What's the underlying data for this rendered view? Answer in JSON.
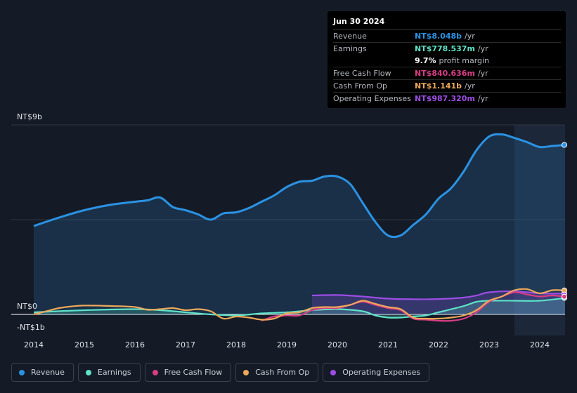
{
  "chart_data": {
    "type": "area",
    "x_range": [
      2014,
      2024.5
    ],
    "ylim": [
      -1,
      9
    ],
    "y_labels": [
      "NT$9b",
      "NT$0",
      "-NT$1b"
    ],
    "x_ticks": [
      "2014",
      "2015",
      "2016",
      "2017",
      "2018",
      "2019",
      "2020",
      "2021",
      "2022",
      "2023",
      "2024"
    ],
    "highlight_start": 2023.5,
    "series": [
      {
        "name": "Revenue",
        "color": "#2b92e3",
        "fill": true,
        "points": [
          [
            2014,
            4.2
          ],
          [
            2014.5,
            4.6
          ],
          [
            2015,
            4.95
          ],
          [
            2015.5,
            5.2
          ],
          [
            2016,
            5.35
          ],
          [
            2016.25,
            5.42
          ],
          [
            2016.5,
            5.55
          ],
          [
            2016.75,
            5.1
          ],
          [
            2017,
            4.95
          ],
          [
            2017.25,
            4.75
          ],
          [
            2017.5,
            4.5
          ],
          [
            2017.75,
            4.8
          ],
          [
            2018,
            4.85
          ],
          [
            2018.25,
            5.05
          ],
          [
            2018.5,
            5.35
          ],
          [
            2018.75,
            5.65
          ],
          [
            2019,
            6.05
          ],
          [
            2019.25,
            6.3
          ],
          [
            2019.5,
            6.35
          ],
          [
            2019.75,
            6.55
          ],
          [
            2020,
            6.55
          ],
          [
            2020.25,
            6.2
          ],
          [
            2020.5,
            5.3
          ],
          [
            2020.75,
            4.4
          ],
          [
            2021,
            3.75
          ],
          [
            2021.25,
            3.75
          ],
          [
            2021.5,
            4.25
          ],
          [
            2021.75,
            4.75
          ],
          [
            2022,
            5.5
          ],
          [
            2022.25,
            6.0
          ],
          [
            2022.5,
            6.8
          ],
          [
            2022.75,
            7.8
          ],
          [
            2023,
            8.45
          ],
          [
            2023.25,
            8.55
          ],
          [
            2023.5,
            8.38
          ],
          [
            2023.75,
            8.18
          ],
          [
            2024,
            7.95
          ],
          [
            2024.25,
            8.0
          ],
          [
            2024.5,
            8.05
          ]
        ]
      },
      {
        "name": "Earnings",
        "color": "#5ee2c8",
        "fill": true,
        "points": [
          [
            2014,
            0.1
          ],
          [
            2015,
            0.2
          ],
          [
            2016,
            0.25
          ],
          [
            2016.5,
            0.2
          ],
          [
            2017,
            0.1
          ],
          [
            2017.5,
            0.0
          ],
          [
            2018,
            -0.05
          ],
          [
            2018.5,
            0.05
          ],
          [
            2019,
            0.1
          ],
          [
            2019.5,
            0.2
          ],
          [
            2020,
            0.25
          ],
          [
            2020.5,
            0.15
          ],
          [
            2020.75,
            -0.05
          ],
          [
            2021,
            -0.15
          ],
          [
            2021.25,
            -0.15
          ],
          [
            2021.5,
            -0.1
          ],
          [
            2021.75,
            -0.05
          ],
          [
            2022,
            0.1
          ],
          [
            2022.5,
            0.4
          ],
          [
            2022.75,
            0.6
          ],
          [
            2023,
            0.65
          ],
          [
            2023.5,
            0.65
          ],
          [
            2024,
            0.65
          ],
          [
            2024.5,
            0.78
          ]
        ]
      },
      {
        "name": "Free Cash Flow",
        "color": "#d83d85",
        "fill": false,
        "start": 2018.5,
        "points": [
          [
            2018.5,
            -0.3
          ],
          [
            2018.75,
            -0.1
          ],
          [
            2019,
            -0.05
          ],
          [
            2019.25,
            -0.05
          ],
          [
            2019.5,
            0.2
          ],
          [
            2019.75,
            0.3
          ],
          [
            2020,
            0.3
          ],
          [
            2020.25,
            0.45
          ],
          [
            2020.5,
            0.6
          ],
          [
            2020.75,
            0.45
          ],
          [
            2021,
            0.3
          ],
          [
            2021.25,
            0.2
          ],
          [
            2021.5,
            -0.2
          ],
          [
            2021.75,
            -0.25
          ],
          [
            2022,
            -0.3
          ],
          [
            2022.25,
            -0.3
          ],
          [
            2022.5,
            -0.2
          ],
          [
            2022.75,
            0.1
          ],
          [
            2023,
            0.6
          ],
          [
            2023.25,
            0.85
          ],
          [
            2023.5,
            1.05
          ],
          [
            2023.75,
            0.95
          ],
          [
            2024,
            0.85
          ],
          [
            2024.25,
            0.9
          ],
          [
            2024.5,
            0.84
          ]
        ]
      },
      {
        "name": "Cash From Op",
        "color": "#eca85a",
        "fill": false,
        "points": [
          [
            2014,
            0.0
          ],
          [
            2014.25,
            0.15
          ],
          [
            2014.5,
            0.3
          ],
          [
            2014.75,
            0.38
          ],
          [
            2015,
            0.42
          ],
          [
            2015.5,
            0.4
          ],
          [
            2016,
            0.35
          ],
          [
            2016.25,
            0.22
          ],
          [
            2016.5,
            0.25
          ],
          [
            2016.75,
            0.3
          ],
          [
            2017,
            0.2
          ],
          [
            2017.25,
            0.25
          ],
          [
            2017.5,
            0.15
          ],
          [
            2017.75,
            -0.2
          ],
          [
            2018,
            -0.1
          ],
          [
            2018.25,
            -0.15
          ],
          [
            2018.5,
            -0.25
          ],
          [
            2018.75,
            -0.2
          ],
          [
            2019,
            0.05
          ],
          [
            2019.25,
            0.1
          ],
          [
            2019.5,
            0.3
          ],
          [
            2019.75,
            0.35
          ],
          [
            2020,
            0.35
          ],
          [
            2020.25,
            0.45
          ],
          [
            2020.5,
            0.65
          ],
          [
            2020.75,
            0.5
          ],
          [
            2021,
            0.35
          ],
          [
            2021.25,
            0.25
          ],
          [
            2021.5,
            -0.15
          ],
          [
            2021.75,
            -0.2
          ],
          [
            2022,
            -0.2
          ],
          [
            2022.25,
            -0.15
          ],
          [
            2022.5,
            -0.05
          ],
          [
            2022.75,
            0.2
          ],
          [
            2023,
            0.65
          ],
          [
            2023.25,
            0.85
          ],
          [
            2023.5,
            1.15
          ],
          [
            2023.75,
            1.2
          ],
          [
            2024,
            1.0
          ],
          [
            2024.25,
            1.15
          ],
          [
            2024.5,
            1.14
          ]
        ]
      },
      {
        "name": "Operating Expenses",
        "color": "#9d4de6",
        "fill": true,
        "start": 2019.5,
        "points": [
          [
            2019.5,
            0.9
          ],
          [
            2020,
            0.92
          ],
          [
            2020.5,
            0.85
          ],
          [
            2021,
            0.75
          ],
          [
            2021.5,
            0.72
          ],
          [
            2022,
            0.73
          ],
          [
            2022.5,
            0.8
          ],
          [
            2022.75,
            0.9
          ],
          [
            2023,
            1.05
          ],
          [
            2023.5,
            1.1
          ],
          [
            2024,
            1.0
          ],
          [
            2024.5,
            0.99
          ]
        ]
      }
    ]
  },
  "tooltip": {
    "date": "Jun 30 2024",
    "rows": [
      {
        "label": "Revenue",
        "value": "NT$8.048b",
        "unit": "/yr",
        "color": "#2b92e3"
      },
      {
        "label": "Earnings",
        "value": "NT$778.537m",
        "unit": "/yr",
        "color": "#5ee2c8"
      },
      {
        "label": "",
        "value": "9.7%",
        "unit": "profit margin",
        "color": "#ffffff"
      },
      {
        "label": "Free Cash Flow",
        "value": "NT$840.636m",
        "unit": "/yr",
        "color": "#d83d85"
      },
      {
        "label": "Cash From Op",
        "value": "NT$1.141b",
        "unit": "/yr",
        "color": "#eca85a"
      },
      {
        "label": "Operating Expenses",
        "value": "NT$987.320m",
        "unit": "/yr",
        "color": "#9d4de6"
      }
    ]
  },
  "legend": [
    {
      "label": "Revenue",
      "color": "#2b92e3"
    },
    {
      "label": "Earnings",
      "color": "#5ee2c8"
    },
    {
      "label": "Free Cash Flow",
      "color": "#d83d85"
    },
    {
      "label": "Cash From Op",
      "color": "#eca85a"
    },
    {
      "label": "Operating Expenses",
      "color": "#9d4de6"
    }
  ]
}
